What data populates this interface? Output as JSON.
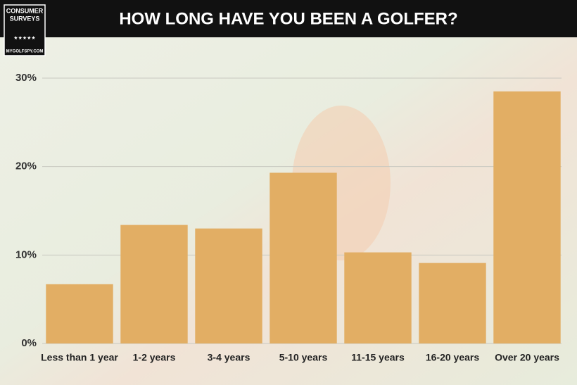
{
  "logo": {
    "line1": "CONSUMER",
    "line2": "SURVEYS",
    "stars": "★★★★★",
    "site": "MYGOLFSPY.COM"
  },
  "chart_data": {
    "type": "bar",
    "title": "HOW LONG HAVE YOU BEEN A GOLFER?",
    "categories": [
      "Less than 1 year",
      "1-2 years",
      "3-4 years",
      "5-10 years",
      "11-15 years",
      "16-20 years",
      "Over 20 years"
    ],
    "values": [
      6.7,
      13.4,
      13.0,
      19.3,
      10.3,
      9.1,
      28.5
    ],
    "color": "#e2ae64",
    "ylim": [
      0,
      30
    ],
    "yticks": [
      {
        "value": 0,
        "label": "0%"
      },
      {
        "value": 10,
        "label": "10%"
      },
      {
        "value": 20,
        "label": "20%"
      },
      {
        "value": 30,
        "label": "30%"
      }
    ],
    "grid": true
  }
}
